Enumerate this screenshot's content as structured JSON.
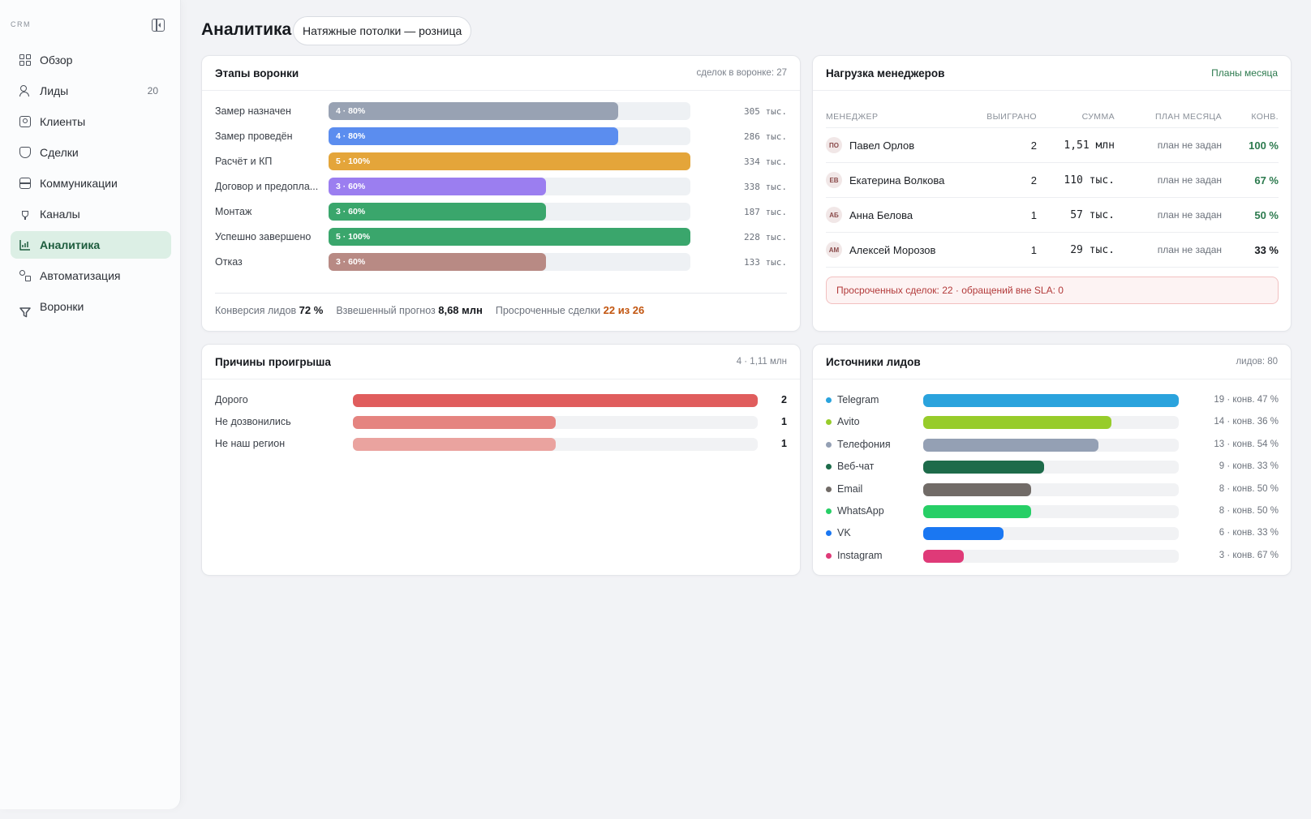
{
  "sidebar": {
    "brand": "CRM",
    "items": [
      {
        "label": "Обзор",
        "icon": "dashboard-icon",
        "count": "",
        "active": false
      },
      {
        "label": "Лиды",
        "icon": "users-icon",
        "count": "20",
        "active": false
      },
      {
        "label": "Клиенты",
        "icon": "contact-card-icon",
        "count": "",
        "active": false
      },
      {
        "label": "Сделки",
        "icon": "handshake-icon",
        "count": "",
        "active": false
      },
      {
        "label": "Коммуникации",
        "icon": "inbox-icon",
        "count": "",
        "active": false
      },
      {
        "label": "Каналы",
        "icon": "plug-icon",
        "count": "",
        "active": false
      },
      {
        "label": "Аналитика",
        "icon": "chart-icon",
        "count": "",
        "active": true
      },
      {
        "label": "Автоматизация",
        "icon": "workflow-icon",
        "count": "",
        "active": false
      },
      {
        "label": "Воронки",
        "icon": "filter-icon",
        "count": "",
        "active": false
      }
    ]
  },
  "header": {
    "title": "Аналитика",
    "pipeline": "Натяжные потолки — розница"
  },
  "funnel": {
    "title": "Этапы воронки",
    "meta": "сделок в воронке: 27",
    "stages": [
      {
        "label": "Замер назначен",
        "count": 4,
        "percent": 80,
        "bar_label": "4 · 80%",
        "amount": "305 тыс.",
        "color": "#98a2b3"
      },
      {
        "label": "Замер проведён",
        "count": 4,
        "percent": 80,
        "bar_label": "4 · 80%",
        "amount": "286 тыс.",
        "color": "#5b8def"
      },
      {
        "label": "Расчёт и КП",
        "count": 5,
        "percent": 100,
        "bar_label": "5 · 100%",
        "amount": "334 тыс.",
        "color": "#e4a53a"
      },
      {
        "label": "Договор и предопла...",
        "count": 3,
        "percent": 60,
        "bar_label": "3 · 60%",
        "amount": "338 тыс.",
        "color": "#9b7ef0"
      },
      {
        "label": "Монтаж",
        "count": 3,
        "percent": 60,
        "bar_label": "3 · 60%",
        "amount": "187 тыс.",
        "color": "#3aa66c"
      },
      {
        "label": "Успешно завершено",
        "count": 5,
        "percent": 100,
        "bar_label": "5 · 100%",
        "amount": "228 тыс.",
        "color": "#3aa66c"
      },
      {
        "label": "Отказ",
        "count": 3,
        "percent": 60,
        "bar_label": "3 · 60%",
        "amount": "133 тыс.",
        "color": "#b88a84"
      }
    ],
    "footer": {
      "conversion_label": "Конверсия лидов",
      "conversion_value": "72 %",
      "forecast_label": "Взвешенный прогноз",
      "forecast_value": "8,68 млн",
      "overdue_label": "Просроченные сделки",
      "overdue_value": "22 из 26"
    }
  },
  "managers": {
    "title": "Нагрузка менеджеров",
    "link": "Планы месяца",
    "columns": [
      "МЕНЕДЖЕР",
      "ВЫИГРАНО",
      "СУММА",
      "ПЛАН МЕСЯЦА",
      "КОНВ."
    ],
    "rows": [
      {
        "initials": "ПО",
        "name": "Павел Орлов",
        "won": "2",
        "sum": "1,51 млн",
        "plan": "план не задан",
        "conv": "100 %",
        "conv_color": "#2c7a4e"
      },
      {
        "initials": "ЕВ",
        "name": "Екатерина Волкова",
        "won": "2",
        "sum": "110 тыс.",
        "plan": "план не задан",
        "conv": "67 %",
        "conv_color": "#2c7a4e"
      },
      {
        "initials": "АБ",
        "name": "Анна Белова",
        "won": "1",
        "sum": "57 тыс.",
        "plan": "план не задан",
        "conv": "50 %",
        "conv_color": "#2c7a4e"
      },
      {
        "initials": "АМ",
        "name": "Алексей Морозов",
        "won": "1",
        "sum": "29 тыс.",
        "plan": "план не задан",
        "conv": "33 %",
        "conv_color": "#15181d"
      }
    ],
    "alert": "Просроченных сделок: 22 · обращений вне SLA: 0"
  },
  "loss": {
    "title": "Причины проигрыша",
    "meta": "4 · 1,11 млн",
    "max": 2,
    "items": [
      {
        "label": "Дорого",
        "count": 2,
        "color": "#e05d5d"
      },
      {
        "label": "Не дозвонились",
        "count": 1,
        "color": "#e58480"
      },
      {
        "label": "Не наш регион",
        "count": 1,
        "color": "#eaa39f"
      }
    ]
  },
  "sources": {
    "title": "Источники лидов",
    "meta": "лидов: 80",
    "max": 19,
    "items": [
      {
        "label": "Telegram",
        "count": 19,
        "stat": "19 · конв. 47 %",
        "color": "#2aa3dd"
      },
      {
        "label": "Avito",
        "count": 14,
        "stat": "14 · конв. 36 %",
        "color": "#97cc2b"
      },
      {
        "label": "Телефония",
        "count": 13,
        "stat": "13 · конв. 54 %",
        "color": "#94a0b4"
      },
      {
        "label": "Веб-чат",
        "count": 9,
        "stat": "9 · конв. 33 %",
        "color": "#1d6b4a"
      },
      {
        "label": "Email",
        "count": 8,
        "stat": "8 · конв. 50 %",
        "color": "#716b67"
      },
      {
        "label": "WhatsApp",
        "count": 8,
        "stat": "8 · конв. 50 %",
        "color": "#27cf66"
      },
      {
        "label": "VK",
        "count": 6,
        "stat": "6 · конв. 33 %",
        "color": "#1a77f2"
      },
      {
        "label": "Instagram",
        "count": 3,
        "stat": "3 · конв. 67 %",
        "color": "#df3a78"
      }
    ]
  }
}
